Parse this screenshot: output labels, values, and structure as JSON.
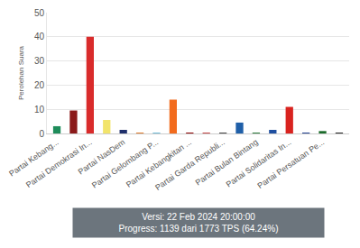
{
  "chart_data": {
    "type": "bar",
    "y_label": "Perolehan Suara",
    "categories": [
      "Partai Kebang...",
      null,
      "Partai Demokrasi In...",
      null,
      "Partai NasDem",
      null,
      "Partai Gelombang P...",
      null,
      "Partai Kebangkitan ...",
      null,
      "Partai Garda Republi...",
      null,
      "Partai Bulan Bintang",
      null,
      "Partai Solidaritas In...",
      null,
      "Partai Persatuan Pe...",
      null
    ],
    "values": [
      3.0,
      9.5,
      40.0,
      5.6,
      1.5,
      0.3,
      0.1,
      14.0,
      0.2,
      0.1,
      0.1,
      4.5,
      0.1,
      1.5,
      11.0,
      0.3,
      1.0,
      0.3
    ],
    "colors": [
      "#1e8c5a",
      "#8b1a1a",
      "#d92b2b",
      "#f2e46b",
      "#1f2f6b",
      "#e07b2a",
      "#6fbcd8",
      "#f26b1d",
      "#8b0000",
      "#c44444",
      "#444444",
      "#1f5fa8",
      "#2a7a3a",
      "#1f4fa0",
      "#d9231f",
      "#1f3f8f",
      "#1a6b2a",
      "#222222"
    ],
    "ylim": [
      0,
      50
    ],
    "yticks": [
      0,
      10,
      20,
      30,
      40,
      50
    ],
    "grid": true,
    "annotations": [
      "Versi: 22 Feb 2024 20:00:00",
      "Progress: 1139 dari 1773 TPS (64.24%)"
    ]
  }
}
